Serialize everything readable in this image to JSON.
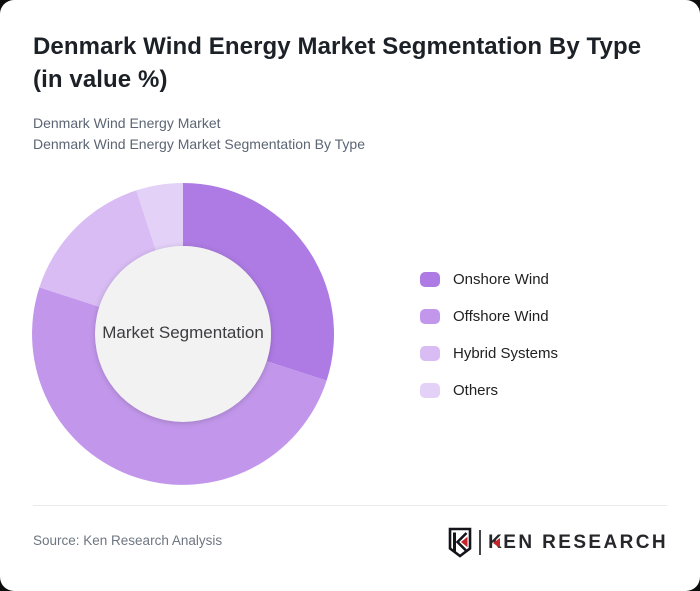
{
  "page": {
    "background_color": "#0d0d0d",
    "card_color": "#ffffff"
  },
  "header": {
    "title_line1": "Denmark Wind Energy Market Segmentation By Type",
    "title_line2": "(in value %)",
    "subtitle_line1": "Denmark Wind Energy Market",
    "subtitle_line2": "Denmark Wind Energy Market Segmentation By Type"
  },
  "chart_data": {
    "type": "pie",
    "variant": "donut",
    "title": "Denmark Wind Energy Market Segmentation By Type (in value %)",
    "units": "value %",
    "categories": [
      "Onshore Wind",
      "Offshore Wind",
      "Hybrid Systems",
      "Others"
    ],
    "values": [
      30,
      50,
      15,
      5
    ],
    "colors": [
      "#ad7be3",
      "#c297eb",
      "#d8bcf3",
      "#e3d1f8"
    ],
    "start_angle_deg": 0,
    "direction": "clockwise",
    "legend_position": "right",
    "center_label": "Market Segmentation",
    "hole_color": "#f2f2f3",
    "inner_radius_ratio": 0.58
  },
  "footer": {
    "source": "Source: Ken Research Analysis",
    "logo": {
      "badge_letter": "K",
      "text_k": "K",
      "text_rest": "EN RESEARCH",
      "accent_color": "#c5242b",
      "text_color": "#26262b"
    }
  }
}
